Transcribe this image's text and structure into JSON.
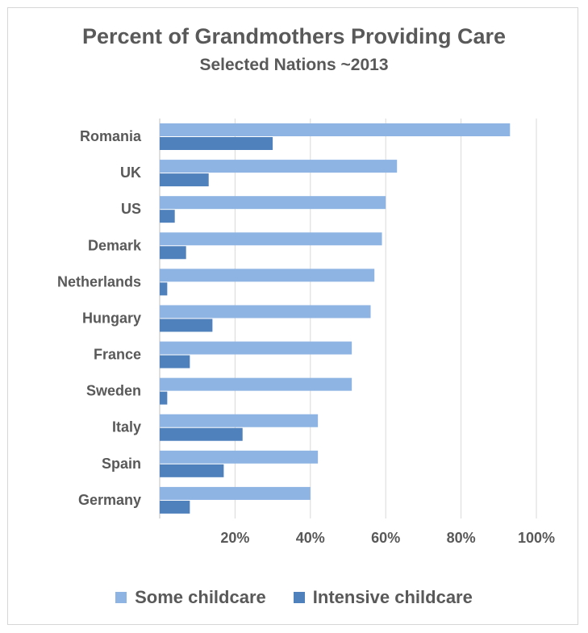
{
  "chart_data": {
    "type": "bar",
    "orientation": "horizontal",
    "title": "Percent of Grandmothers  Providing  Care",
    "subtitle": "Selected Nations ~2013",
    "categories": [
      "Romania",
      "UK",
      "US",
      "Demark",
      "Netherlands",
      "Hungary",
      "France",
      "Sweden",
      "Italy",
      "Spain",
      "Germany"
    ],
    "series": [
      {
        "name": "Some childcare",
        "color": "#8eb4e3",
        "values": [
          93,
          63,
          60,
          59,
          57,
          56,
          51,
          51,
          42,
          42,
          40
        ]
      },
      {
        "name": "Intensive childcare",
        "color": "#4f81bd",
        "values": [
          30,
          13,
          4,
          7,
          2,
          14,
          8,
          2,
          22,
          17,
          8
        ]
      }
    ],
    "xlim": [
      0,
      100
    ],
    "xticks": [
      0,
      20,
      40,
      60,
      80,
      100
    ],
    "tick_labels": [
      "",
      "20%",
      "40%",
      "60%",
      "80%",
      "100%"
    ],
    "grid": true,
    "legend_position": "bottom"
  }
}
